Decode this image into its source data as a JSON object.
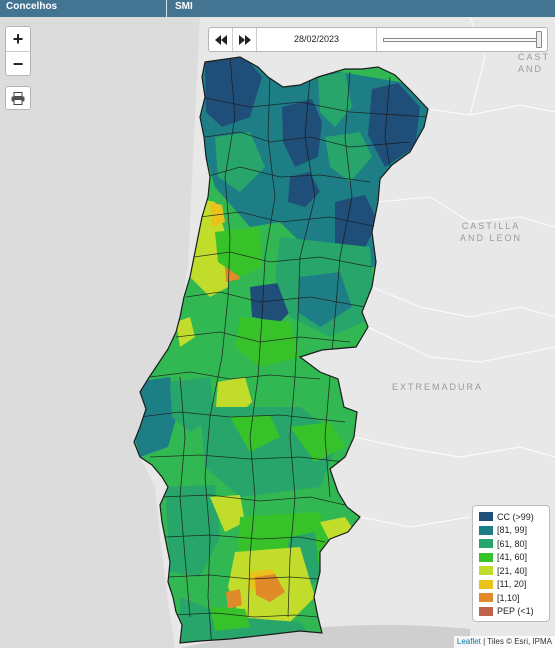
{
  "header": {
    "col1": "Concelhos",
    "col2": "SMI"
  },
  "time_control": {
    "date": "28/02/2023",
    "slider_position": 1.0
  },
  "zoom": {
    "in_label": "+",
    "out_label": "−"
  },
  "map_labels": {
    "north_east": "CAST\nAND",
    "castilla": "CASTILLA\nAND LEON",
    "extremadura": "EXTREMADURA"
  },
  "legend": {
    "items": [
      {
        "label": "CC (>99)",
        "color": "#1f4e79"
      },
      {
        "label": "[81, 99]",
        "color": "#1e7e86"
      },
      {
        "label": "[61, 80]",
        "color": "#27a56a"
      },
      {
        "label": "[41, 60]",
        "color": "#38c22a"
      },
      {
        "label": "[21, 40]",
        "color": "#c2dc2c"
      },
      {
        "label": "[11, 20]",
        "color": "#e9c21c"
      },
      {
        "label": "[1,10]",
        "color": "#e08a2a"
      },
      {
        "label": "PEP (<1)",
        "color": "#c0644c"
      }
    ]
  },
  "attribution": {
    "link": "Leaflet",
    "text": " | Tiles © Esri, IPMA"
  },
  "icons": [
    "rewind-icon",
    "fast-forward-icon",
    "print-icon"
  ]
}
